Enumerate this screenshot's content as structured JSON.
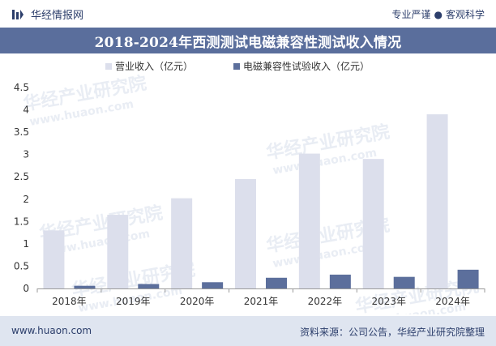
{
  "header": {
    "brand": "华经情报网",
    "tagline_left": "专业严谨",
    "tagline_sep": "●",
    "tagline_right": "客观科学",
    "brand_color": "#2c3e6b"
  },
  "title": "2018-2024年西测测试电磁兼容性测试收入情况",
  "footer": {
    "website": "www.huaon.com",
    "source": "资料来源：公司公告，华经产业研究院整理"
  },
  "watermark_text": "华经产业研究院",
  "watermark_url": "www.huaon.com",
  "colors": {
    "title_bg": "#5a6e9c",
    "footer_bg": "#dfe5f0",
    "series1": "#dcdfec",
    "series2": "#5c6f9c"
  },
  "chart_data": {
    "type": "bar",
    "categories": [
      "2018年",
      "2019年",
      "2020年",
      "2021年",
      "2022年",
      "2023年",
      "2024年"
    ],
    "series": [
      {
        "name": "营业收入（亿元）",
        "values": [
          1.3,
          1.65,
          2.02,
          2.45,
          3.02,
          2.9,
          3.9
        ]
      },
      {
        "name": "电磁兼容性试验收入（亿元）",
        "values": [
          0.06,
          0.1,
          0.14,
          0.24,
          0.31,
          0.26,
          0.42
        ]
      }
    ],
    "yticks": [
      "0",
      "0.5",
      "1",
      "1.5",
      "2",
      "2.5",
      "3",
      "3.5",
      "4",
      "4.5"
    ],
    "ylim": [
      0,
      4.5
    ],
    "title": "2018-2024年西测测试电磁兼容性测试收入情况",
    "xlabel": "",
    "ylabel": ""
  }
}
